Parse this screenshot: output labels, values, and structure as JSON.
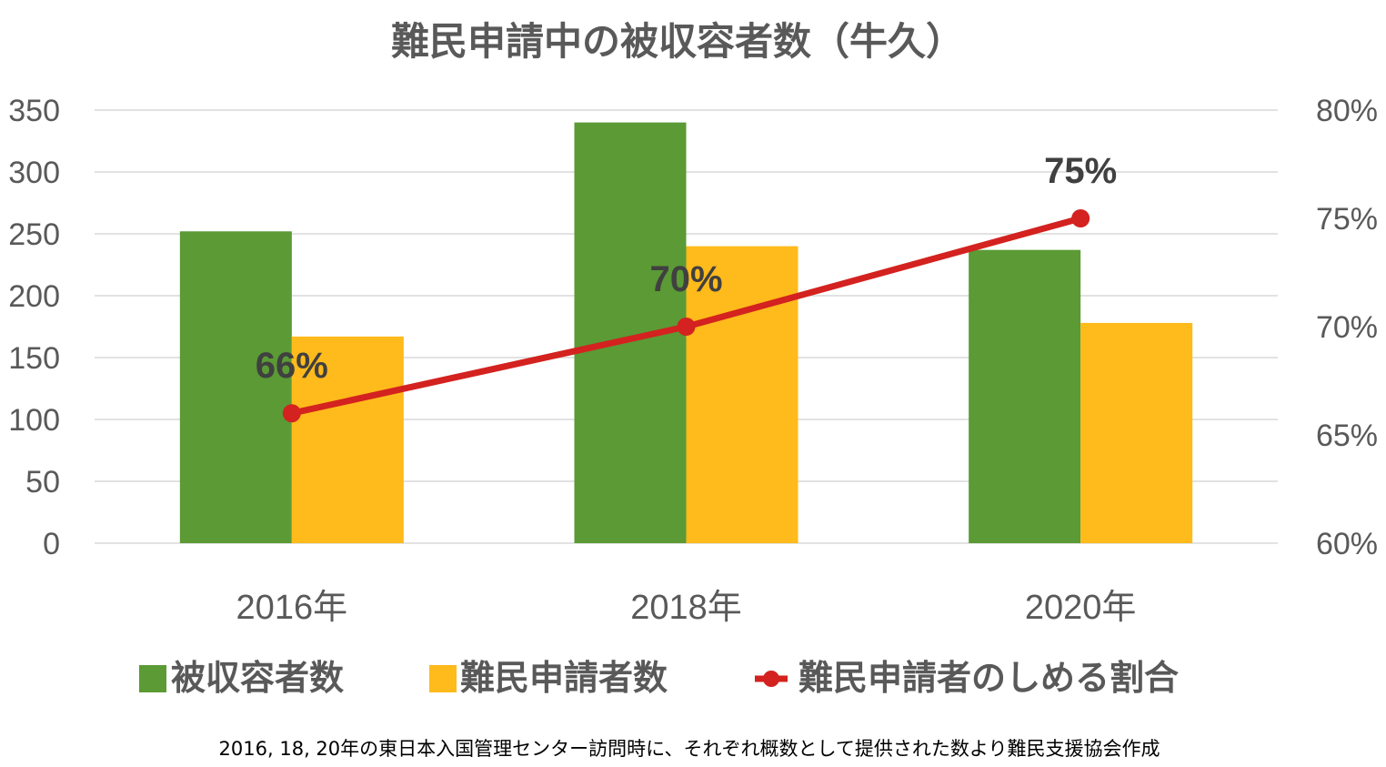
{
  "chart_data": {
    "type": "bar",
    "title": "難民申請中の被収容者数（牛久）",
    "categories": [
      "2016年",
      "2018年",
      "2020年"
    ],
    "series": [
      {
        "name": "被収容者数",
        "type": "bar",
        "axis": "left",
        "color": "#5b9a35",
        "values": [
          252,
          340,
          237
        ]
      },
      {
        "name": "難民申請者数",
        "type": "bar",
        "axis": "left",
        "color": "#ffba1b",
        "values": [
          167,
          240,
          178
        ]
      },
      {
        "name": "難民申請者のしめる割合",
        "type": "line",
        "axis": "right",
        "color": "#d3221f",
        "values": [
          66,
          70,
          75
        ],
        "data_labels": [
          "66%",
          "70%",
          "75%"
        ]
      }
    ],
    "left_axis": {
      "ylim": [
        0,
        350
      ],
      "ticks": [
        "0",
        "50",
        "100",
        "150",
        "200",
        "250",
        "300",
        "350"
      ],
      "tick_values": [
        0,
        50,
        100,
        150,
        200,
        250,
        300,
        350
      ]
    },
    "right_axis": {
      "ylim": [
        60,
        80
      ],
      "ticks": [
        "60%",
        "65%",
        "70%",
        "75%",
        "80%"
      ],
      "tick_values": [
        60,
        65,
        70,
        75,
        80
      ]
    },
    "grid": true,
    "legend_position": "bottom",
    "xlabel": "",
    "ylabel": "",
    "footnote": "2016, 18, 20年の東日本入国管理センター訪問時に、それぞれ概数として提供された数より難民支援協会作成"
  }
}
